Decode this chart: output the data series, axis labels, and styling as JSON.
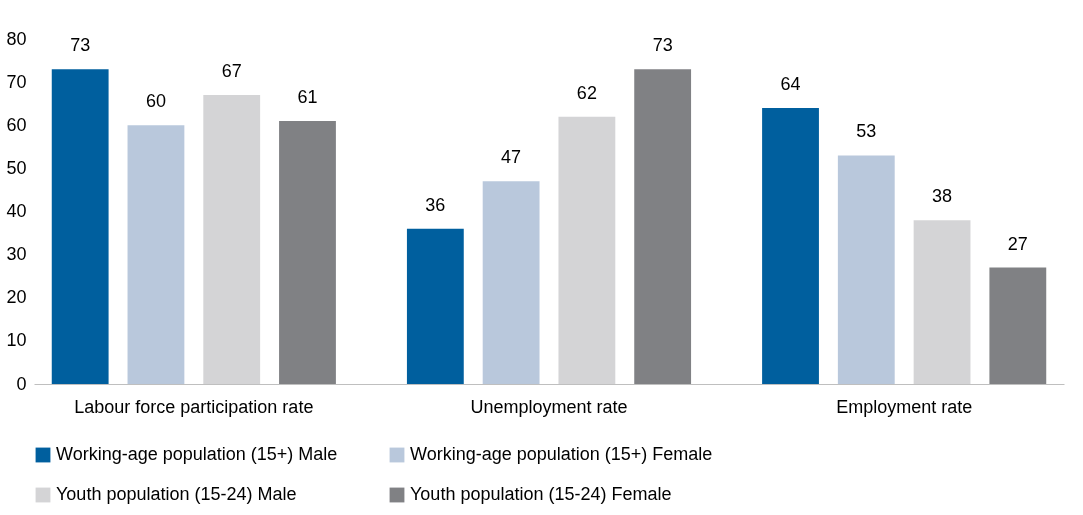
{
  "chart_data": {
    "type": "bar",
    "categories": [
      "Labour force participation rate",
      "Unemployment rate",
      "Employment rate"
    ],
    "series": [
      {
        "name": "Working-age population (15+) Male",
        "color": "#005f9e",
        "values": [
          73,
          36,
          64
        ]
      },
      {
        "name": "Working-age population (15+) Female",
        "color": "#b9c8dc",
        "values": [
          60,
          47,
          53
        ]
      },
      {
        "name": "Youth population (15-24) Male",
        "color": "#d4d4d6",
        "values": [
          67,
          62,
          38
        ]
      },
      {
        "name": "Youth population (15-24) Female",
        "color": "#808184",
        "values": [
          61,
          73,
          27
        ]
      }
    ],
    "ylim": [
      0,
      80
    ],
    "yticks": [
      0,
      10,
      20,
      30,
      40,
      50,
      60,
      70,
      80
    ],
    "data_labels": true,
    "grid": false,
    "legend": "bottom"
  }
}
